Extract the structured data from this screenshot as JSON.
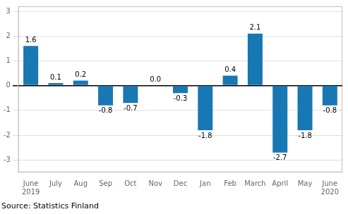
{
  "chart_data": {
    "type": "bar",
    "categories": [
      "June\n2019",
      "July",
      "Aug",
      "Sep",
      "Oct",
      "Nov",
      "Dec",
      "Jan",
      "Feb",
      "March",
      "April",
      "May",
      "June\n2020"
    ],
    "values": [
      1.6,
      0.1,
      0.2,
      -0.8,
      -0.7,
      0.0,
      -0.3,
      -1.8,
      0.4,
      2.1,
      -2.7,
      -1.8,
      -0.8
    ],
    "value_labels": [
      "1.6",
      "0.1",
      "0.2",
      "-0.8",
      "-0.7",
      "0.0",
      "-0.3",
      "-1.8",
      "0.4",
      "2.1",
      "-2.7",
      "-1.8",
      "-0.8"
    ],
    "data_labels": true,
    "color": "#1878b4",
    "ylim": [
      -3.5,
      3.2
    ],
    "yticks": [
      -3,
      -2,
      -1,
      0,
      1,
      2,
      3
    ],
    "grid": true,
    "annotations": [
      "Source: Statistics Finland"
    ]
  }
}
